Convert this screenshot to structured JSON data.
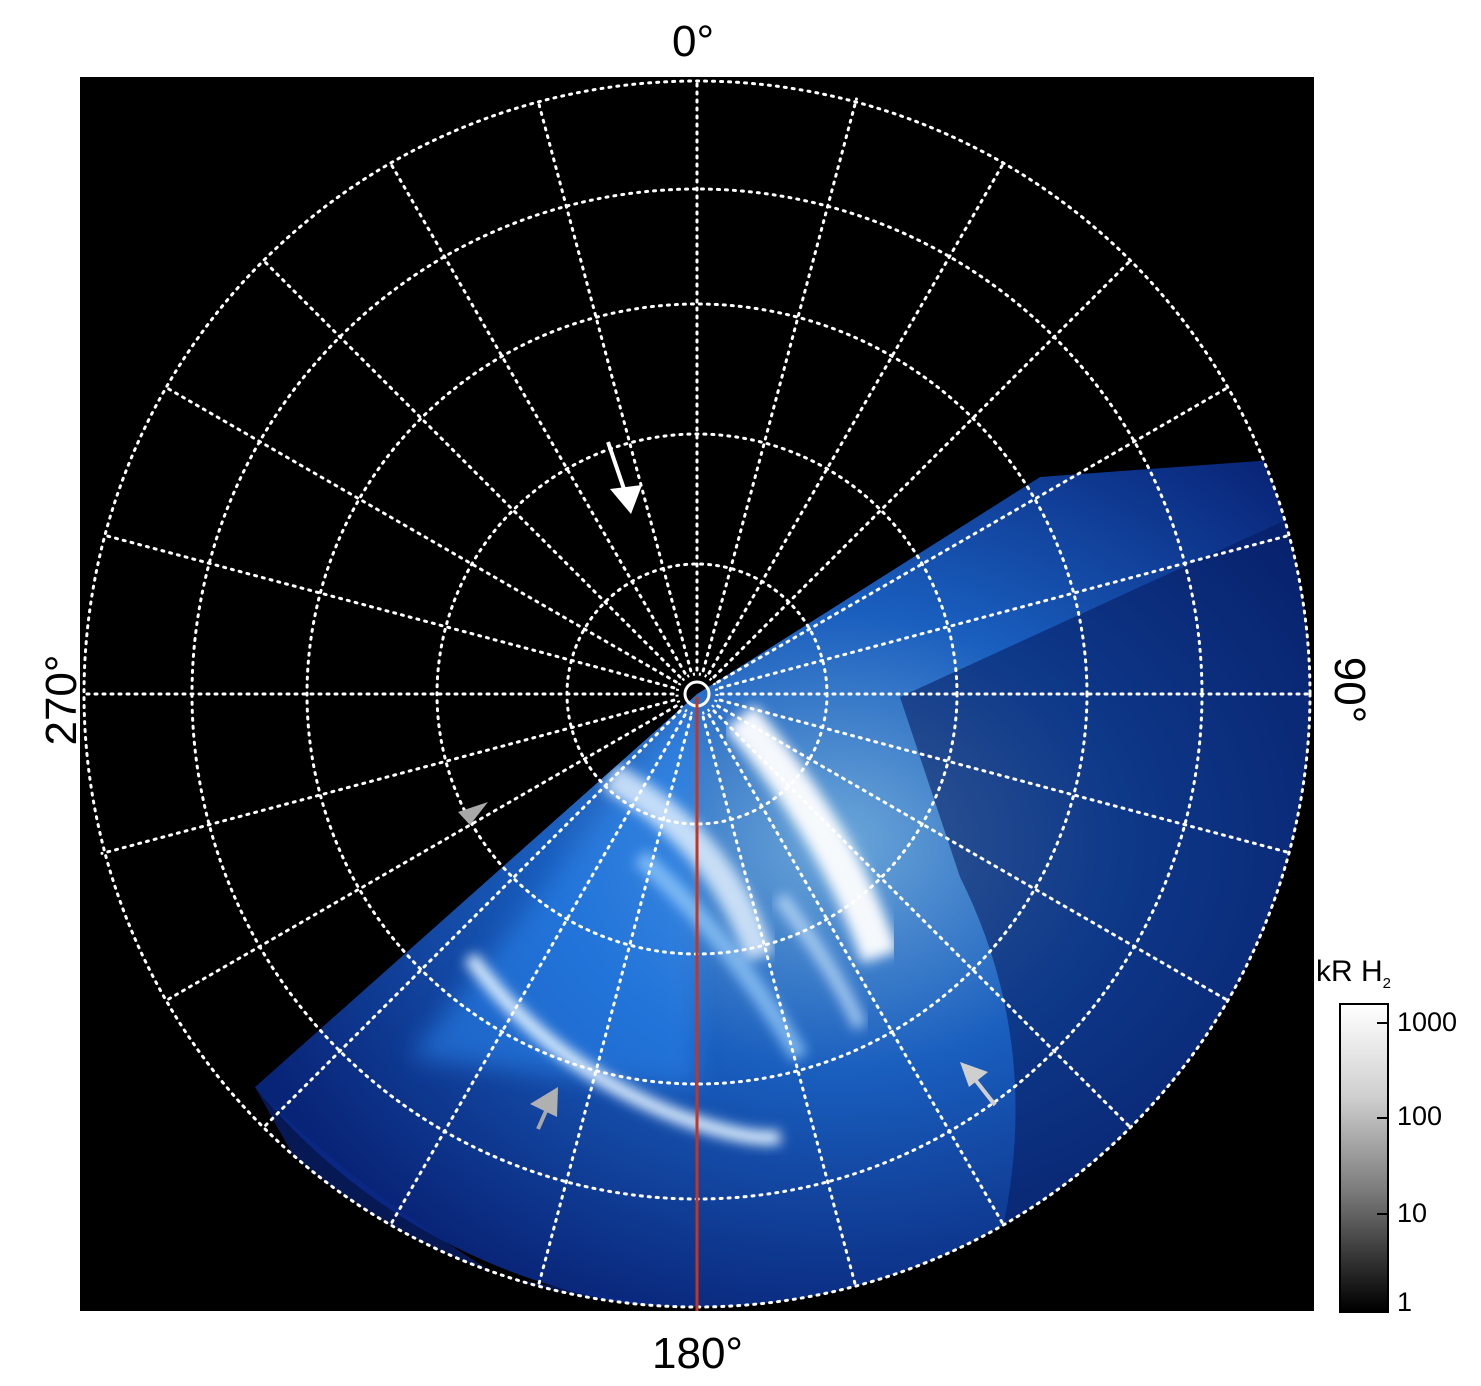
{
  "axis_labels": {
    "top": "0°",
    "right": "90°",
    "bottom": "180°",
    "left": "270°"
  },
  "colorbar": {
    "title_main": "kR H",
    "title_sub": "2",
    "scale": "log",
    "ticks": [
      "1000",
      "100",
      "10",
      "1"
    ]
  },
  "colors": {
    "background": "#000000",
    "grid": "#ffffff",
    "aurora_low": "#0a3bd6",
    "aurora_mid": "#3aa0ff",
    "aurora_high": "#ffffff",
    "meridian_line": "#c8341c",
    "marker_white": "#ffffff",
    "marker_grey": "#b0b0b0"
  },
  "markers": [
    "arrow-white",
    "arrow-grey",
    "arrow-grey",
    "arrow-grey"
  ]
}
